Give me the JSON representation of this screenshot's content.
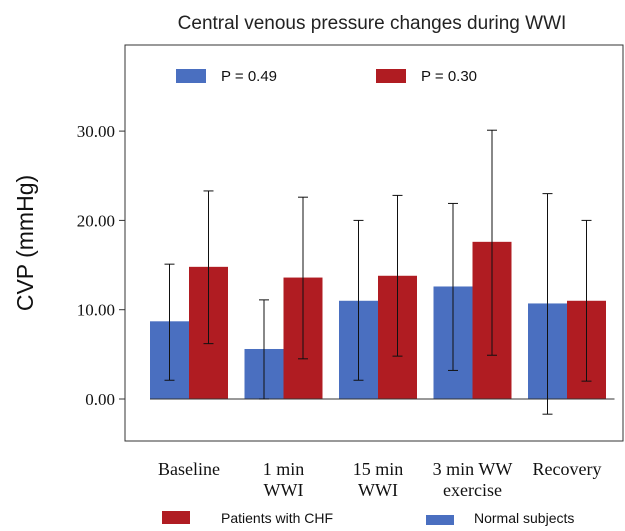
{
  "chart_data": {
    "type": "bar",
    "title": "Central venous pressure changes during WWI",
    "xlabel": "",
    "ylabel": "CVP (mmHg)",
    "ylim": [
      -5,
      40
    ],
    "yticks": [
      "0.00",
      "10.00",
      "20.00",
      "30.00"
    ],
    "ytick_values": [
      0,
      10,
      20,
      30
    ],
    "grid": false,
    "categories": [
      [
        "Baseline"
      ],
      [
        "1 min",
        "WWI"
      ],
      [
        "15 min",
        "WWI"
      ],
      [
        "3 min WW",
        "exercise"
      ],
      [
        "Recovery"
      ]
    ],
    "series": [
      {
        "name": "Normal subjects",
        "color": "#4a6fc0",
        "values": [
          8.7,
          5.6,
          11.0,
          12.6,
          10.7
        ],
        "error_low": [
          2.1,
          0.0,
          2.1,
          3.2,
          -1.7
        ],
        "error_high": [
          15.1,
          11.1,
          20.0,
          21.9,
          23.0
        ]
      },
      {
        "name": "Patients with CHF",
        "color": "#b01c22",
        "values": [
          14.8,
          13.6,
          13.8,
          17.6,
          11.0
        ],
        "error_low": [
          6.2,
          4.5,
          4.8,
          4.9,
          2.0
        ],
        "error_high": [
          23.3,
          22.6,
          22.8,
          30.1,
          20.0
        ]
      }
    ],
    "pvalue_legend": [
      {
        "label": "P = 0.49",
        "color": "#4a6fc0"
      },
      {
        "label": "P = 0.30",
        "color": "#b01c22"
      }
    ],
    "legend_placement": "bottom"
  }
}
